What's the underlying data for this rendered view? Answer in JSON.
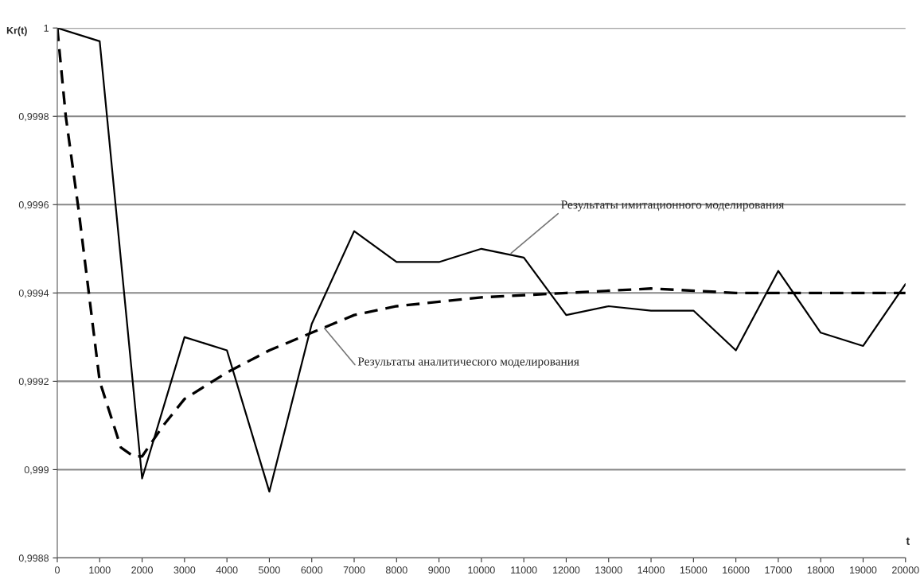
{
  "chart_data": {
    "type": "line",
    "xlabel": "t",
    "ylabel": "Kr(t)",
    "series": [
      {
        "color": "#000000",
        "line_style": "solid",
        "x": [
          0,
          1000,
          2000,
          3000,
          4000,
          5000,
          6000,
          7000,
          8000,
          9000,
          10000,
          11000,
          12000,
          13000,
          14000,
          15000,
          16000,
          17000,
          18000,
          19000,
          20000
        ],
        "values": [
          1.0,
          0.99997,
          0.99898,
          0.9993,
          0.99927,
          0.99895,
          0.99933,
          0.99954,
          0.99947,
          0.99947,
          0.9995,
          0.99948,
          0.99935,
          0.99937,
          0.99936,
          0.99936,
          0.99927,
          0.99945,
          0.99931,
          0.99928,
          0.99942
        ]
      },
      {
        "color": "#000000",
        "line_style": "dashed",
        "x": [
          0,
          200,
          500,
          1000,
          1500,
          1800,
          2000,
          2500,
          3000,
          4000,
          5000,
          6000,
          7000,
          8000,
          9000,
          10000,
          12000,
          14000,
          16000,
          18000,
          20000
        ],
        "values": [
          1.0,
          0.9998,
          0.99959,
          0.9992,
          0.99905,
          0.99903,
          0.99903,
          0.9991,
          0.99916,
          0.99922,
          0.99927,
          0.99931,
          0.99935,
          0.99937,
          0.99938,
          0.99939,
          0.9994,
          0.99941,
          0.9994,
          0.9994,
          0.9994
        ]
      }
    ],
    "annotations": [
      {
        "text": "Результаты имитационного моделирования",
        "x": 10700,
        "y": 0.99949
      },
      {
        "text": "Результаты аналитичесюго моделирования",
        "x": 6300,
        "y": 0.99932
      }
    ],
    "xlim": [
      0,
      20000
    ],
    "xticks": [
      0,
      1000,
      2000,
      3000,
      4000,
      5000,
      6000,
      7000,
      8000,
      9000,
      10000,
      11000,
      12000,
      13000,
      14000,
      15000,
      16000,
      17000,
      18000,
      19000,
      20000
    ],
    "ylim": [
      0.9988,
      1.0
    ],
    "yticks": [
      {
        "value": 0.9988,
        "label": "0,9988"
      },
      {
        "value": 0.999,
        "label": "0,999"
      },
      {
        "value": 0.9992,
        "label": "0,9992"
      },
      {
        "value": 0.9994,
        "label": "0,9994"
      },
      {
        "value": 0.9996,
        "label": "0,9996"
      },
      {
        "value": 0.9998,
        "label": "0,9998"
      },
      1
    ],
    "grid": "y",
    "legend": false,
    "marker": "none"
  }
}
